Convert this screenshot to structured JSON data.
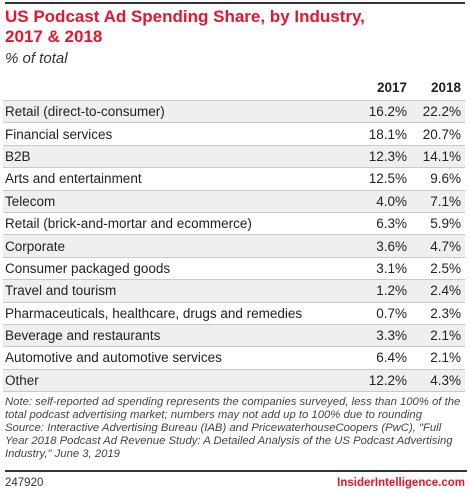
{
  "title_line1": "US Podcast Ad Spending Share, by Industry,",
  "title_line2": "2017 & 2018",
  "subtitle": "% of total",
  "columns": [
    "",
    "2017",
    "2018"
  ],
  "note": "Note: self-reported ad spending represents the companies surveyed, less than 100% of the total podcast advertising market; numbers may not add up to 100% due to rounding",
  "source": "Source: Interactive Advertising Bureau (IAB) and PricewaterhouseCoopers (PwC), \"Full Year 2018 Podcast Ad Revenue Study: A Detailed Analysis of the US Podcast Advertising Industry,\" June 3, 2019",
  "footer": {
    "chart_id": "247920",
    "brand": "InsiderIntelligence.com"
  },
  "colors": {
    "accent": "#e8152d",
    "row_shade": "#efefef"
  },
  "chart_data": {
    "type": "table",
    "title": "US Podcast Ad Spending Share, by Industry, 2017 & 2018",
    "subtitle": "% of total",
    "columns": [
      "2017",
      "2018"
    ],
    "rows": [
      {
        "category": "Retail (direct-to-consumer)",
        "v2017": "16.2%",
        "v2018": "22.2%"
      },
      {
        "category": "Financial services",
        "v2017": "18.1%",
        "v2018": "20.7%"
      },
      {
        "category": "B2B",
        "v2017": "12.3%",
        "v2018": "14.1%"
      },
      {
        "category": "Arts and entertainment",
        "v2017": "12.5%",
        "v2018": "9.6%"
      },
      {
        "category": "Telecom",
        "v2017": "4.0%",
        "v2018": "7.1%"
      },
      {
        "category": "Retail (brick-and-mortar and ecommerce)",
        "v2017": "6.3%",
        "v2018": "5.9%"
      },
      {
        "category": "Corporate",
        "v2017": "3.6%",
        "v2018": "4.7%"
      },
      {
        "category": "Consumer packaged goods",
        "v2017": "3.1%",
        "v2018": "2.5%"
      },
      {
        "category": "Travel and tourism",
        "v2017": "1.2%",
        "v2018": "2.4%"
      },
      {
        "category": "Pharmaceuticals, healthcare, drugs and remedies",
        "v2017": "0.7%",
        "v2018": "2.3%"
      },
      {
        "category": "Beverage and restaurants",
        "v2017": "3.3%",
        "v2018": "2.1%"
      },
      {
        "category": "Automotive and automotive services",
        "v2017": "6.4%",
        "v2018": "2.1%"
      },
      {
        "category": "Other",
        "v2017": "12.2%",
        "v2018": "4.3%"
      }
    ]
  }
}
